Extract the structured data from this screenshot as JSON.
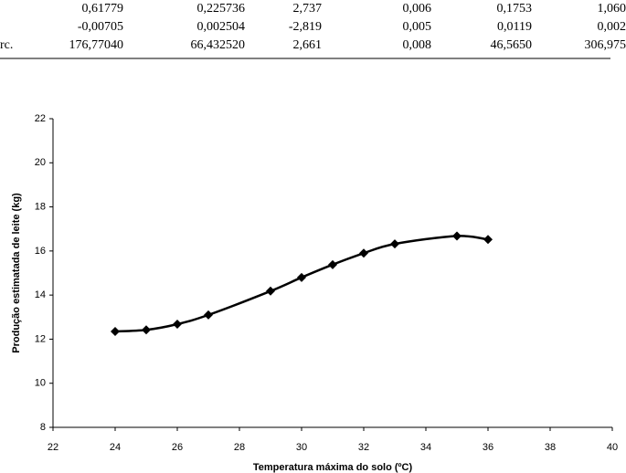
{
  "table": {
    "rows": [
      {
        "cells": [
          "0,61779",
          "0,225736",
          "2,737",
          "0,006",
          "0,1753",
          "1,060"
        ]
      },
      {
        "cells": [
          "-0,00705",
          "0,002504",
          "-2,819",
          "0,005",
          "0,0119",
          "0,002"
        ]
      },
      {
        "label": "rc.",
        "cells": [
          "176,77040",
          "66,432520",
          "2,661",
          "0,008",
          "46,5650",
          "306,975"
        ]
      }
    ]
  },
  "chart_data": {
    "type": "line",
    "x_label": "Temperatura máxima do solo (ºC)",
    "y_label": "Produção estimatada de leite (kg)",
    "x": [
      24,
      25,
      26,
      27,
      29,
      30,
      31,
      32,
      33,
      35,
      36
    ],
    "series": [
      {
        "color": "#000000",
        "values": [
          12.35,
          12.42,
          12.68,
          13.1,
          14.18,
          14.8,
          15.38,
          15.9,
          16.32,
          16.68,
          16.52
        ]
      }
    ],
    "xlim": [
      22,
      40
    ],
    "xticks": [
      22,
      24,
      26,
      28,
      30,
      32,
      34,
      36,
      38,
      40
    ],
    "ylim": [
      8,
      22
    ],
    "yticks": [
      8,
      10,
      12,
      14,
      16,
      18,
      20,
      22
    ]
  }
}
